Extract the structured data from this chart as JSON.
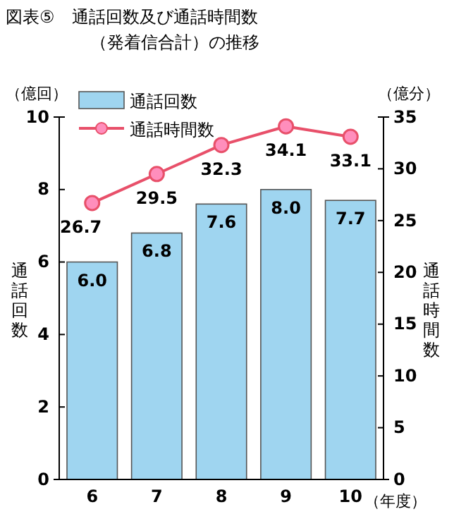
{
  "chart_data": {
    "type": "bar",
    "title": "図表⑤　通話回数及び通話時間数",
    "subtitle": "（発着信合計）の推移",
    "xlabel": "（年度）",
    "ylabel": "通話回数",
    "y2label": "通話時間数",
    "annotations": [
      "（億回）",
      "（億分）"
    ],
    "categories": [
      "6",
      "7",
      "8",
      "9",
      "10"
    ],
    "series": [
      {
        "name": "通話回数",
        "color": "#9fd5f0",
        "values": [
          6.0,
          6.8,
          7.6,
          8.0,
          7.7
        ],
        "value_labels": [
          "6.0",
          "6.8",
          "7.6",
          "8.0",
          "7.7"
        ]
      },
      {
        "name": "通話時間数",
        "type": "line",
        "axis": "y2",
        "color": "#e8506a",
        "values": [
          26.7,
          29.5,
          32.3,
          34.1,
          33.1
        ],
        "value_labels": [
          "26.7",
          "29.5",
          "32.3",
          "34.1",
          "33.1"
        ]
      }
    ],
    "ylim": [
      0,
      10
    ],
    "yticks": [
      0,
      2,
      4,
      6,
      8,
      10
    ],
    "y2lim": [
      0,
      35
    ],
    "y2ticks": [
      0,
      5,
      10,
      15,
      20,
      25,
      30,
      35
    ],
    "legend": "top left",
    "marker": "circle",
    "grid": false
  }
}
